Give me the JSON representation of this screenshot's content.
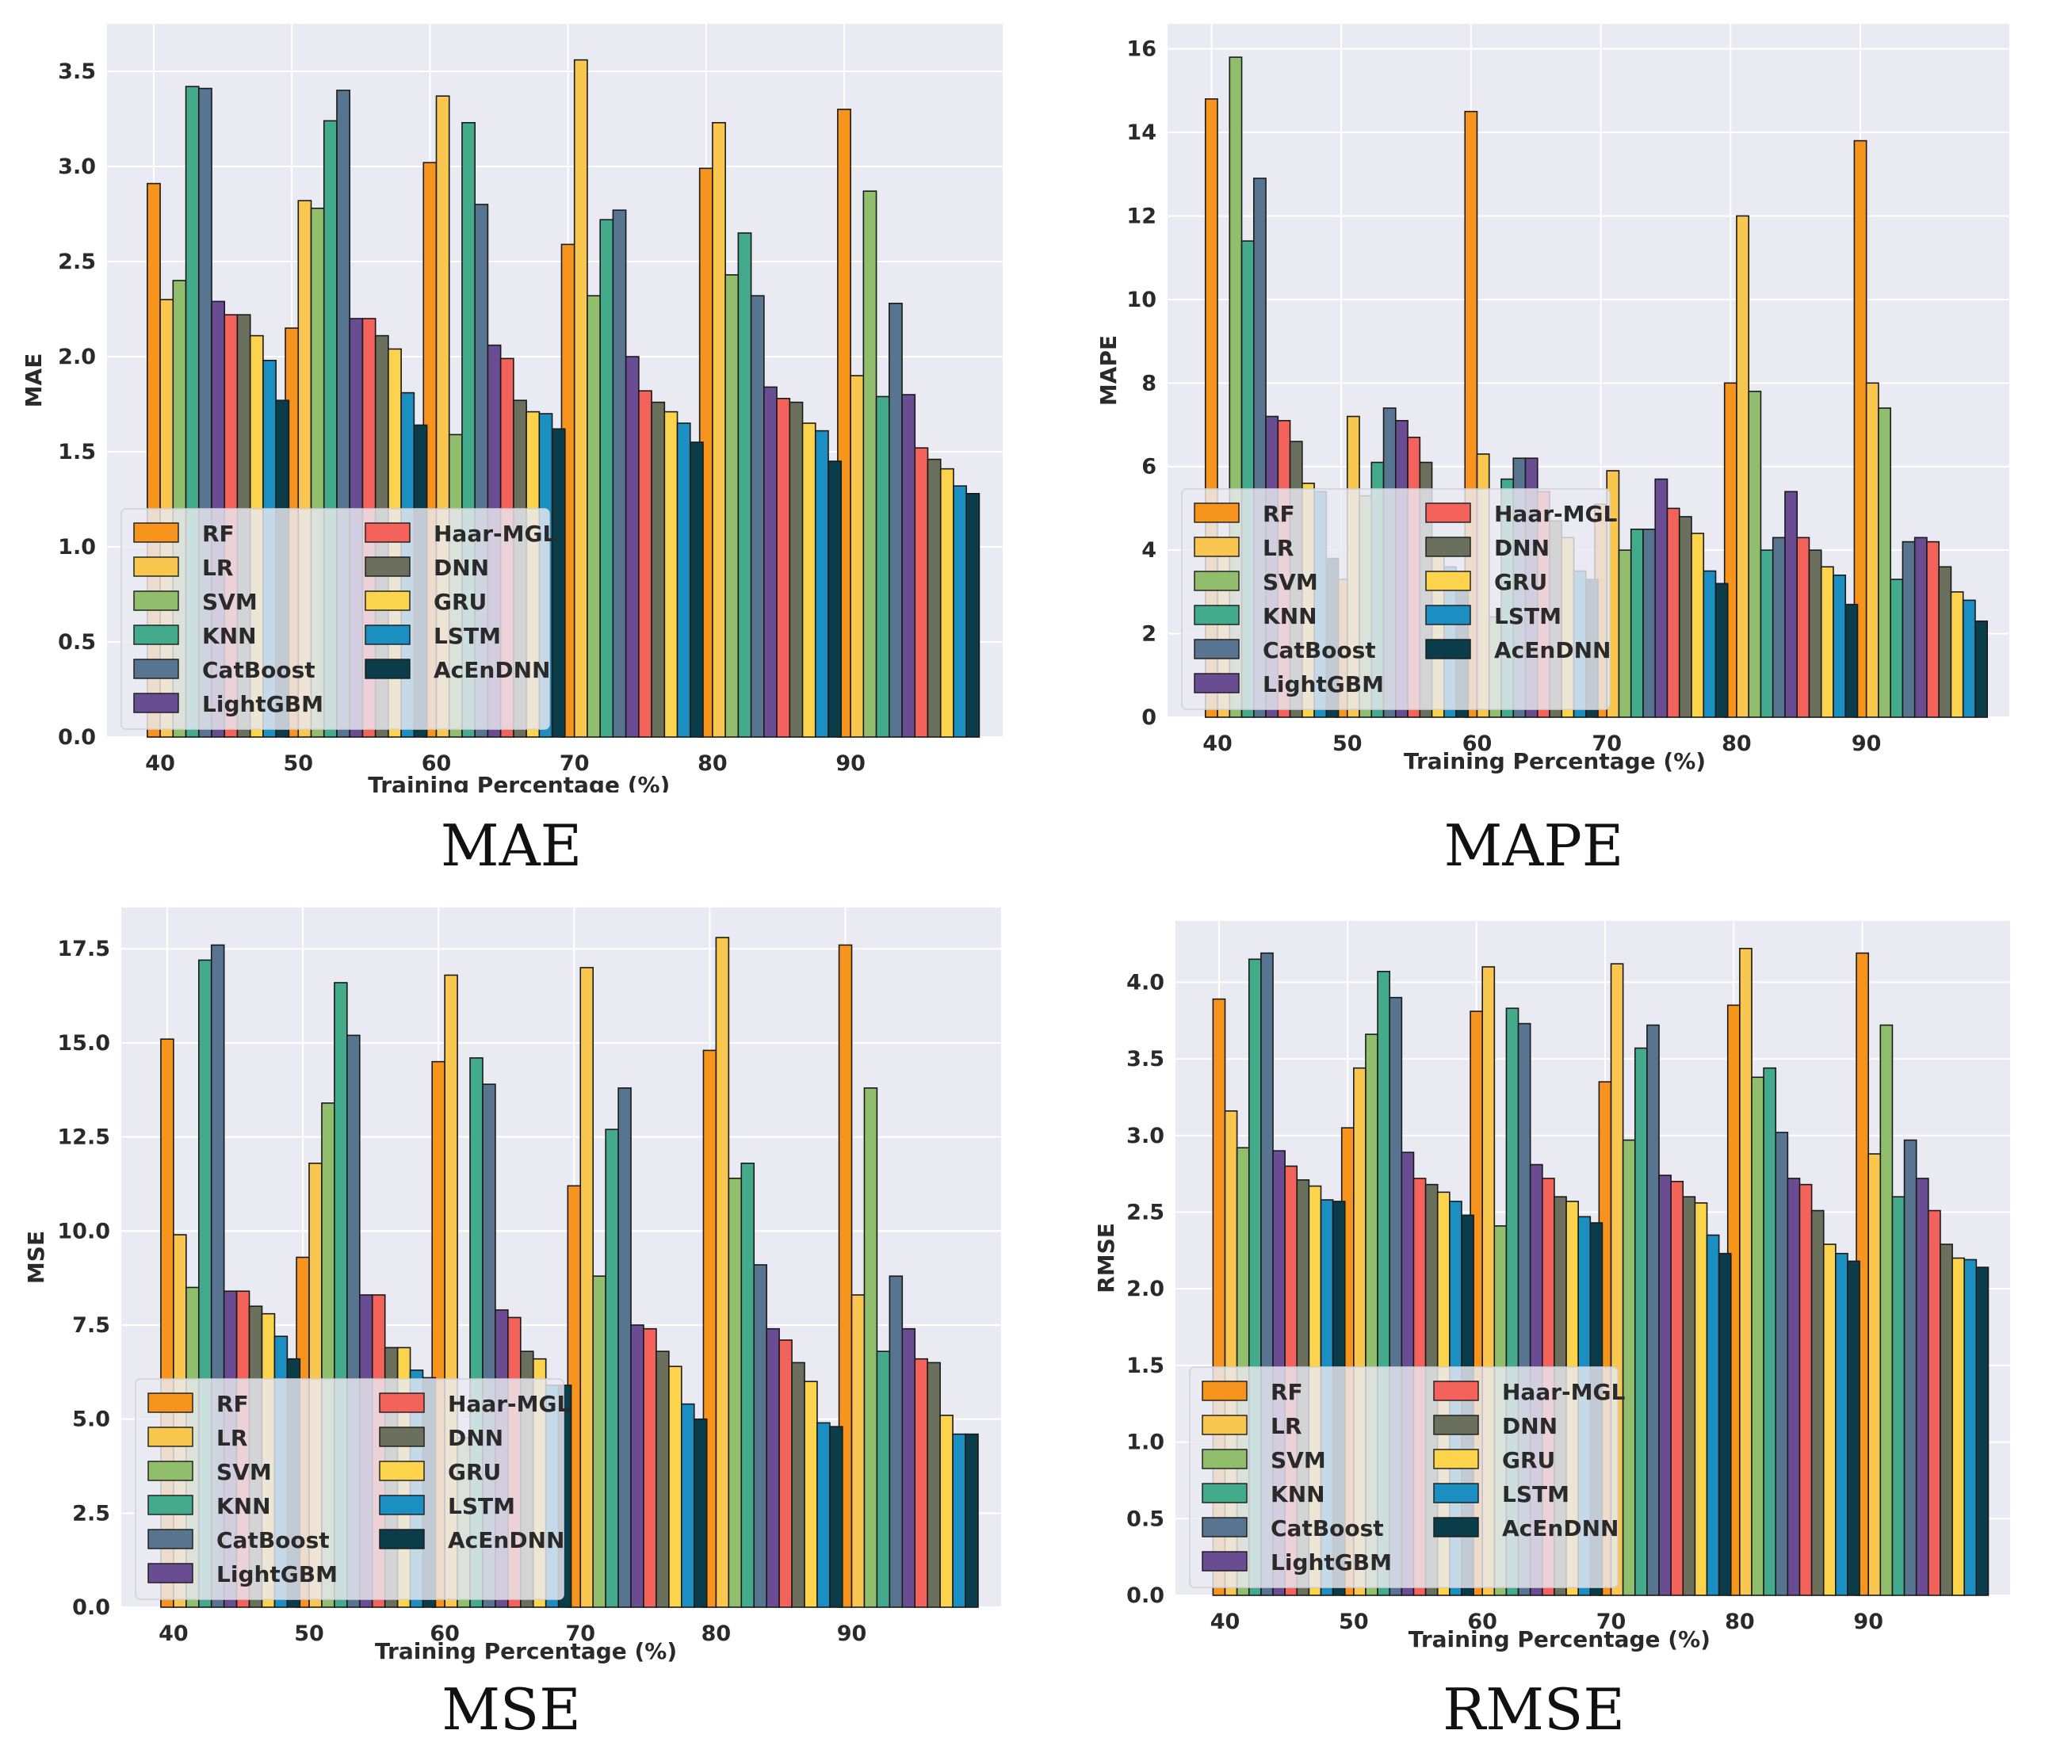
{
  "series_names": [
    "RF",
    "LR",
    "SVM",
    "KNN",
    "CatBoost",
    "LightGBM",
    "Haar-MGL",
    "DNN",
    "GRU",
    "LSTM",
    "AcEnDNN"
  ],
  "colors": [
    "#f7941d",
    "#f9c74f",
    "#90be6d",
    "#43aa8b",
    "#577590",
    "#6a4c93",
    "#f3635b",
    "#6b705c",
    "#fcd34d",
    "#1b8fc1",
    "#0b3c49"
  ],
  "chart_data": [
    {
      "type": "bar",
      "title": "MAE",
      "xlabel": "Training Percentage (%)",
      "ylabel": "MAE",
      "ylim": [
        0,
        3.75
      ],
      "yticks": [
        0.0,
        0.5,
        1.0,
        1.5,
        2.0,
        2.5,
        3.0,
        3.5
      ],
      "ytick_labels": [
        "0.0",
        "0.5",
        "1.0",
        "1.5",
        "2.0",
        "2.5",
        "3.0",
        "3.5"
      ],
      "categories": [
        "40",
        "50",
        "60",
        "70",
        "80",
        "90"
      ],
      "legend_position": "bottom-left",
      "series": [
        {
          "name": "RF",
          "values": [
            2.91,
            2.15,
            3.02,
            2.59,
            2.99,
            3.3
          ]
        },
        {
          "name": "LR",
          "values": [
            2.3,
            2.82,
            3.37,
            3.56,
            3.23,
            1.9
          ]
        },
        {
          "name": "SVM",
          "values": [
            2.4,
            2.78,
            1.59,
            2.32,
            2.43,
            2.87
          ]
        },
        {
          "name": "KNN",
          "values": [
            3.42,
            3.24,
            3.23,
            2.72,
            2.65,
            1.79
          ]
        },
        {
          "name": "CatBoost",
          "values": [
            3.41,
            3.4,
            2.8,
            2.77,
            2.32,
            2.28
          ]
        },
        {
          "name": "LightGBM",
          "values": [
            2.29,
            2.2,
            2.06,
            2.0,
            1.84,
            1.8
          ]
        },
        {
          "name": "Haar-MGL",
          "values": [
            2.22,
            2.2,
            1.99,
            1.82,
            1.78,
            1.52
          ]
        },
        {
          "name": "DNN",
          "values": [
            2.22,
            2.11,
            1.77,
            1.76,
            1.76,
            1.46
          ]
        },
        {
          "name": "GRU",
          "values": [
            2.11,
            2.04,
            1.71,
            1.71,
            1.65,
            1.41
          ]
        },
        {
          "name": "LSTM",
          "values": [
            1.98,
            1.81,
            1.7,
            1.65,
            1.61,
            1.32
          ]
        },
        {
          "name": "AcEnDNN",
          "values": [
            1.77,
            1.64,
            1.62,
            1.55,
            1.45,
            1.28
          ]
        }
      ]
    },
    {
      "type": "bar",
      "title": "MAPE",
      "xlabel": "Training Percentage (%)",
      "ylabel": "MAPE",
      "ylim": [
        0,
        16.6
      ],
      "yticks": [
        0,
        2,
        4,
        6,
        8,
        10,
        12,
        14,
        16
      ],
      "ytick_labels": [
        "0",
        "2",
        "4",
        "6",
        "8",
        "10",
        "12",
        "14",
        "16"
      ],
      "categories": [
        "40",
        "50",
        "60",
        "70",
        "80",
        "90"
      ],
      "legend_position": "bottom-left",
      "series": [
        {
          "name": "RF",
          "values": [
            14.8,
            3.3,
            14.5,
            5.1,
            8.0,
            13.8
          ]
        },
        {
          "name": "LR",
          "values": [
            4.3,
            7.2,
            6.3,
            5.9,
            12.0,
            8.0
          ]
        },
        {
          "name": "SVM",
          "values": [
            15.8,
            5.3,
            2.4,
            4.0,
            7.8,
            7.4
          ]
        },
        {
          "name": "KNN",
          "values": [
            11.4,
            6.1,
            5.7,
            4.5,
            4.0,
            3.3
          ]
        },
        {
          "name": "CatBoost",
          "values": [
            12.9,
            7.4,
            6.2,
            4.5,
            4.3,
            4.2
          ]
        },
        {
          "name": "LightGBM",
          "values": [
            7.2,
            7.1,
            6.2,
            5.7,
            5.4,
            4.3
          ]
        },
        {
          "name": "Haar-MGL",
          "values": [
            7.1,
            6.7,
            5.4,
            5.0,
            4.3,
            4.2
          ]
        },
        {
          "name": "DNN",
          "values": [
            6.6,
            6.1,
            4.7,
            4.8,
            4.0,
            3.6
          ]
        },
        {
          "name": "GRU",
          "values": [
            5.6,
            4.3,
            4.3,
            4.4,
            3.6,
            3.0
          ]
        },
        {
          "name": "LSTM",
          "values": [
            5.4,
            3.6,
            3.5,
            3.5,
            3.4,
            2.8
          ]
        },
        {
          "name": "AcEnDNN",
          "values": [
            3.8,
            3.3,
            3.3,
            3.2,
            2.7,
            2.3
          ]
        }
      ]
    },
    {
      "type": "bar",
      "title": "MSE",
      "xlabel": "Training Percentage (%)",
      "ylabel": "MSE",
      "ylim": [
        0,
        18.6
      ],
      "yticks": [
        0.0,
        2.5,
        5.0,
        7.5,
        10.0,
        12.5,
        15.0,
        17.5
      ],
      "ytick_labels": [
        "0.0",
        "2.5",
        "5.0",
        "7.5",
        "10.0",
        "12.5",
        "15.0",
        "17.5"
      ],
      "categories": [
        "40",
        "50",
        "60",
        "70",
        "80",
        "90"
      ],
      "legend_position": "bottom-left",
      "series": [
        {
          "name": "RF",
          "values": [
            15.1,
            9.3,
            14.5,
            11.2,
            14.8,
            17.6
          ]
        },
        {
          "name": "LR",
          "values": [
            9.9,
            11.8,
            16.8,
            17.0,
            17.8,
            8.3
          ]
        },
        {
          "name": "SVM",
          "values": [
            8.5,
            13.4,
            4.5,
            8.8,
            11.4,
            13.8
          ]
        },
        {
          "name": "KNN",
          "values": [
            17.2,
            16.6,
            14.6,
            12.7,
            11.8,
            6.8
          ]
        },
        {
          "name": "CatBoost",
          "values": [
            17.6,
            15.2,
            13.9,
            13.8,
            9.1,
            8.8
          ]
        },
        {
          "name": "LightGBM",
          "values": [
            8.4,
            8.3,
            7.9,
            7.5,
            7.4,
            7.4
          ]
        },
        {
          "name": "Haar-MGL",
          "values": [
            8.4,
            8.3,
            7.7,
            7.4,
            7.1,
            6.6
          ]
        },
        {
          "name": "DNN",
          "values": [
            8.0,
            6.9,
            6.8,
            6.8,
            6.5,
            6.5
          ]
        },
        {
          "name": "GRU",
          "values": [
            7.8,
            6.9,
            6.6,
            6.4,
            6.0,
            5.1
          ]
        },
        {
          "name": "LSTM",
          "values": [
            7.2,
            6.3,
            5.9,
            5.4,
            4.9,
            4.6
          ]
        },
        {
          "name": "AcEnDNN",
          "values": [
            6.6,
            6.1,
            5.9,
            5.0,
            4.8,
            4.6
          ]
        }
      ]
    },
    {
      "type": "bar",
      "title": "RMSE",
      "xlabel": "Training Percentage (%)",
      "ylabel": "RMSE",
      "ylim": [
        0,
        4.4
      ],
      "yticks": [
        0.0,
        0.5,
        1.0,
        1.5,
        2.0,
        2.5,
        3.0,
        3.5,
        4.0
      ],
      "ytick_labels": [
        "0.0",
        "0.5",
        "1.0",
        "1.5",
        "2.0",
        "2.5",
        "3.0",
        "3.5",
        "4.0"
      ],
      "categories": [
        "40",
        "50",
        "60",
        "70",
        "80",
        "90"
      ],
      "legend_position": "bottom-left",
      "series": [
        {
          "name": "RF",
          "values": [
            3.89,
            3.05,
            3.81,
            3.35,
            3.85,
            4.19
          ]
        },
        {
          "name": "LR",
          "values": [
            3.16,
            3.44,
            4.1,
            4.12,
            4.22,
            2.88
          ]
        },
        {
          "name": "SVM",
          "values": [
            2.92,
            3.66,
            2.41,
            2.97,
            3.38,
            3.72
          ]
        },
        {
          "name": "KNN",
          "values": [
            4.15,
            4.07,
            3.83,
            3.57,
            3.44,
            2.6
          ]
        },
        {
          "name": "CatBoost",
          "values": [
            4.19,
            3.9,
            3.73,
            3.72,
            3.02,
            2.97
          ]
        },
        {
          "name": "LightGBM",
          "values": [
            2.9,
            2.89,
            2.81,
            2.74,
            2.72,
            2.72
          ]
        },
        {
          "name": "Haar-MGL",
          "values": [
            2.8,
            2.72,
            2.72,
            2.7,
            2.68,
            2.51
          ]
        },
        {
          "name": "DNN",
          "values": [
            2.71,
            2.68,
            2.6,
            2.6,
            2.51,
            2.29
          ]
        },
        {
          "name": "GRU",
          "values": [
            2.67,
            2.63,
            2.57,
            2.56,
            2.29,
            2.2
          ]
        },
        {
          "name": "LSTM",
          "values": [
            2.58,
            2.57,
            2.47,
            2.35,
            2.23,
            2.19
          ]
        },
        {
          "name": "AcEnDNN",
          "values": [
            2.57,
            2.48,
            2.43,
            2.23,
            2.18,
            2.14
          ]
        }
      ]
    }
  ]
}
